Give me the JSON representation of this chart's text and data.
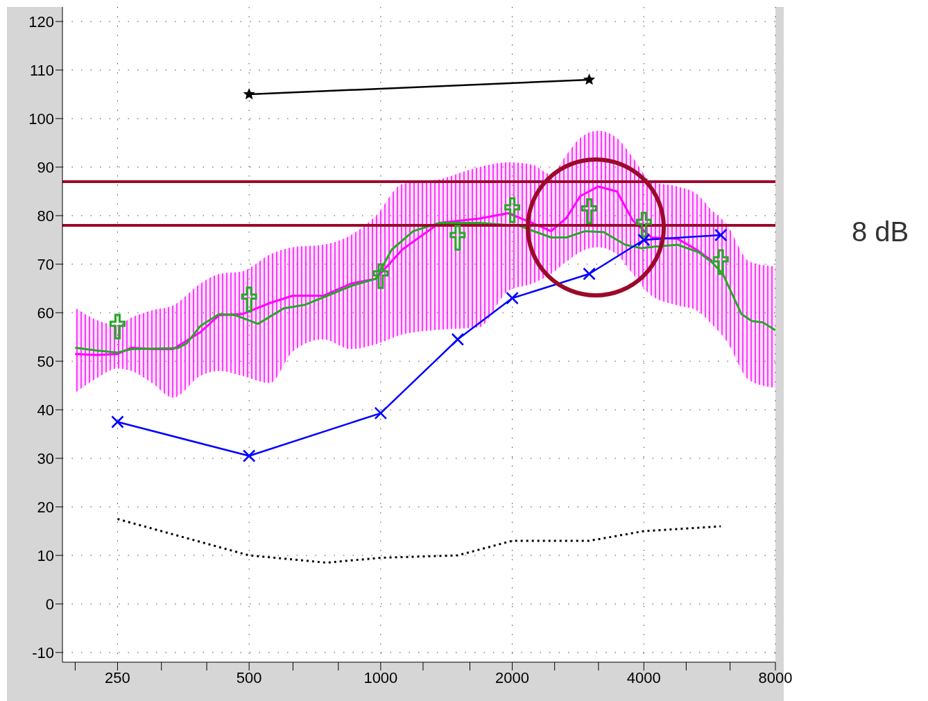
{
  "chart_data": {
    "type": "line",
    "xlim": [
      187,
      8000
    ],
    "ylim": [
      -12,
      123
    ],
    "log": "x",
    "xticks": [
      {
        "value": 200,
        "label": null
      },
      250,
      {
        "value": 315,
        "label": null
      },
      {
        "value": 400,
        "label": null
      },
      500,
      {
        "value": 630,
        "label": null
      },
      {
        "value": 800,
        "label": null
      },
      1000,
      {
        "value": 1250,
        "label": null
      },
      {
        "value": 1600,
        "label": null
      },
      2000,
      {
        "value": 2500,
        "label": null
      },
      {
        "value": 3150,
        "label": null
      },
      4000,
      {
        "value": 5000,
        "label": null
      },
      {
        "value": 6300,
        "label": null
      },
      8000
    ],
    "yticks": [
      -10,
      0,
      10,
      20,
      30,
      40,
      50,
      60,
      70,
      80,
      90,
      100,
      110,
      120
    ],
    "grid": true,
    "series": [
      {
        "color": "#ff00ff",
        "x": [
          200,
          224,
          250,
          269,
          300,
          335,
          387,
          427,
          482,
          558,
          629,
          739,
          855,
          975,
          1120,
          1363,
          1679,
          1957,
          2223,
          2454,
          2659,
          2860,
          3144,
          3470,
          3774,
          4165,
          4783,
          5278,
          5740,
          6150,
          6990,
          8000
        ],
        "values": [
          51.5,
          51.3,
          51.5,
          52.8,
          52.5,
          52.5,
          56,
          59.5,
          59.7,
          62,
          63.5,
          63.5,
          66,
          67,
          73,
          78.5,
          79.4,
          80.5,
          78.5,
          76.8,
          79.5,
          84,
          86,
          85,
          79,
          75.5,
          75.2,
          73,
          70.6,
          null,
          null,
          null
        ],
        "lower": [
          43.5,
          46.5,
          48.5,
          48,
          45.5,
          42.5,
          47,
          48,
          47,
          45.5,
          52,
          54.5,
          52.5,
          53.5,
          55.5,
          56.5,
          57,
          64.5,
          66,
          68,
          70.5,
          72.5,
          73.5,
          72,
          68,
          63.5,
          61.5,
          60.5,
          57.5,
          54.5,
          46,
          44.5
        ],
        "upper": [
          61,
          58.5,
          57.5,
          59,
          60.5,
          61.5,
          66,
          68,
          68.5,
          72,
          73.5,
          74,
          76,
          80,
          86.5,
          87.5,
          90,
          91,
          90.5,
          88.5,
          92.5,
          96,
          97.5,
          96,
          92,
          87,
          86,
          84.5,
          81,
          78.5,
          70.5,
          69.5
        ]
      },
      {
        "color": "#22aa22",
        "x": [
          200,
          224,
          250,
          269,
          343,
          360,
          387,
          427,
          465,
          524,
          558,
          600,
          669,
          755,
          855,
          975,
          1060,
          1187,
          1363,
          1679,
          2075,
          2454,
          2659,
          2935,
          3237,
          3626,
          3942,
          4226,
          4783,
          5355,
          5740,
          6063,
          6690,
          7067,
          7490,
          8000
        ],
        "values": [
          52.8,
          52.2,
          51.8,
          52.5,
          52.7,
          53.7,
          57.3,
          59.7,
          59.5,
          57.7,
          59.2,
          60.9,
          61.6,
          63.5,
          65.5,
          67,
          73,
          76.8,
          78.5,
          78.5,
          77.9,
          75.5,
          75.5,
          76.8,
          76.6,
          74,
          73.3,
          73.6,
          74,
          72.4,
          70.3,
          68,
          59.7,
          58.3,
          58,
          56.4
        ]
      },
      {
        "type": "scatter",
        "color": "#22aa22",
        "marker": "cross",
        "x": [
          250,
          500,
          1000,
          1500,
          2000,
          3000,
          4000,
          6000
        ],
        "values": [
          57,
          62.6,
          67.4,
          75.3,
          81,
          80.8,
          78,
          70.3
        ]
      },
      {
        "color": "#0000ff",
        "marker": "cross",
        "x": [
          250,
          500,
          1000,
          1500,
          2000,
          3000,
          4000,
          6000
        ],
        "values": [
          37.5,
          30.5,
          39.3,
          54.5,
          63,
          68,
          75,
          76
        ]
      },
      {
        "color": "#000000",
        "marker": "star",
        "x": [
          500,
          3000
        ],
        "values": [
          105,
          108
        ]
      },
      {
        "color": "#000000",
        "line_style": "dotted",
        "x": [
          250,
          500,
          750,
          1000,
          1500,
          2000,
          3000,
          4000,
          6000
        ],
        "values": [
          17.5,
          10,
          8.5,
          9.5,
          10,
          13,
          13,
          15,
          16
        ]
      }
    ],
    "ref_lines": [
      {
        "axis": "y",
        "value": 87,
        "color": "#9b0a2a"
      },
      {
        "axis": "y",
        "value": 78,
        "color": "#9b0a2a"
      }
    ],
    "annotations": [
      "8 dB"
    ]
  }
}
